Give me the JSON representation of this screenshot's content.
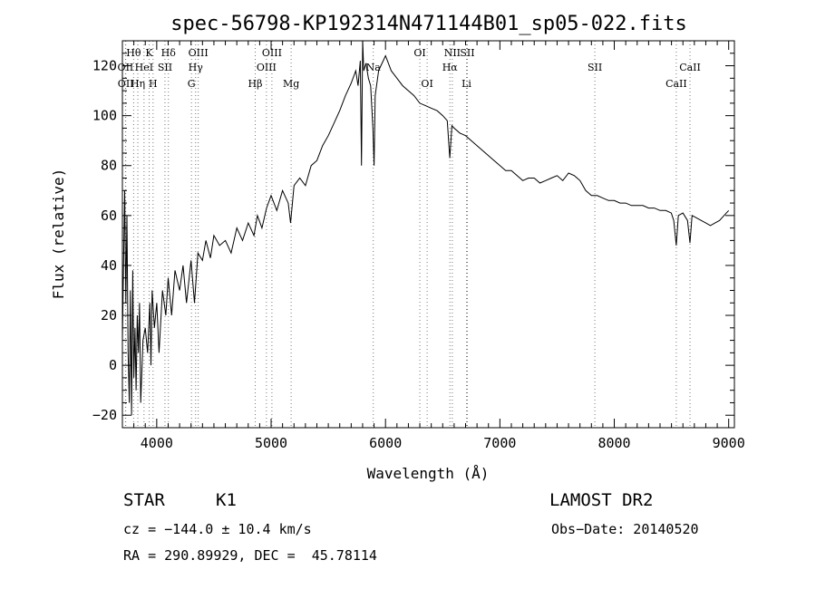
{
  "chart_data": {
    "type": "line",
    "title": "spec-56798-KP192314N471144B01_sp05-022.fits",
    "xlabel": "Wavelength (Å)",
    "ylabel": "Flux (relative)",
    "xlim": [
      3700,
      9050
    ],
    "ylim": [
      -25,
      130
    ],
    "xticks": [
      4000,
      5000,
      6000,
      7000,
      8000,
      9000
    ],
    "yticks": [
      -20,
      0,
      20,
      40,
      60,
      80,
      100,
      120
    ],
    "grid": false,
    "series": [
      {
        "values": [
          [
            3700,
            10
          ],
          [
            3720,
            70
          ],
          [
            3730,
            25
          ],
          [
            3740,
            60
          ],
          [
            3750,
            5
          ],
          [
            3760,
            -15
          ],
          [
            3770,
            30
          ],
          [
            3780,
            -20
          ],
          [
            3790,
            38
          ],
          [
            3800,
            -5
          ],
          [
            3810,
            15
          ],
          [
            3820,
            -10
          ],
          [
            3830,
            20
          ],
          [
            3840,
            5
          ],
          [
            3850,
            25
          ],
          [
            3860,
            -15
          ],
          [
            3880,
            10
          ],
          [
            3900,
            15
          ],
          [
            3920,
            5
          ],
          [
            3940,
            25
          ],
          [
            3950,
            0
          ],
          [
            3960,
            30
          ],
          [
            3980,
            15
          ],
          [
            4000,
            25
          ],
          [
            4020,
            5
          ],
          [
            4050,
            30
          ],
          [
            4080,
            20
          ],
          [
            4100,
            35
          ],
          [
            4130,
            20
          ],
          [
            4160,
            38
          ],
          [
            4200,
            30
          ],
          [
            4230,
            40
          ],
          [
            4260,
            25
          ],
          [
            4300,
            42
          ],
          [
            4330,
            25
          ],
          [
            4360,
            45
          ],
          [
            4400,
            42
          ],
          [
            4430,
            50
          ],
          [
            4470,
            43
          ],
          [
            4500,
            52
          ],
          [
            4550,
            48
          ],
          [
            4600,
            50
          ],
          [
            4650,
            45
          ],
          [
            4700,
            55
          ],
          [
            4750,
            50
          ],
          [
            4800,
            57
          ],
          [
            4850,
            52
          ],
          [
            4880,
            60
          ],
          [
            4920,
            55
          ],
          [
            4960,
            63
          ],
          [
            5000,
            68
          ],
          [
            5050,
            62
          ],
          [
            5100,
            70
          ],
          [
            5150,
            65
          ],
          [
            5170,
            57
          ],
          [
            5200,
            72
          ],
          [
            5250,
            75
          ],
          [
            5300,
            72
          ],
          [
            5350,
            80
          ],
          [
            5400,
            82
          ],
          [
            5450,
            88
          ],
          [
            5500,
            92
          ],
          [
            5550,
            97
          ],
          [
            5600,
            102
          ],
          [
            5650,
            108
          ],
          [
            5700,
            113
          ],
          [
            5740,
            118
          ],
          [
            5760,
            112
          ],
          [
            5780,
            122
          ],
          [
            5790,
            80
          ],
          [
            5800,
            130
          ],
          [
            5810,
            118
          ],
          [
            5830,
            121
          ],
          [
            5850,
            115
          ],
          [
            5870,
            112
          ],
          [
            5890,
            95
          ],
          [
            5900,
            80
          ],
          [
            5910,
            108
          ],
          [
            5940,
            118
          ],
          [
            5960,
            120
          ],
          [
            5980,
            122
          ],
          [
            6000,
            124
          ],
          [
            6050,
            118
          ],
          [
            6100,
            115
          ],
          [
            6150,
            112
          ],
          [
            6200,
            110
          ],
          [
            6250,
            108
          ],
          [
            6300,
            105
          ],
          [
            6350,
            104
          ],
          [
            6400,
            103
          ],
          [
            6450,
            102
          ],
          [
            6500,
            100
          ],
          [
            6540,
            98
          ],
          [
            6562,
            83
          ],
          [
            6580,
            96
          ],
          [
            6600,
            95
          ],
          [
            6650,
            93
          ],
          [
            6700,
            92
          ],
          [
            6750,
            90
          ],
          [
            6800,
            88
          ],
          [
            6850,
            86
          ],
          [
            6900,
            84
          ],
          [
            6950,
            82
          ],
          [
            7000,
            80
          ],
          [
            7050,
            78
          ],
          [
            7100,
            78
          ],
          [
            7150,
            76
          ],
          [
            7200,
            74
          ],
          [
            7250,
            75
          ],
          [
            7300,
            75
          ],
          [
            7350,
            73
          ],
          [
            7400,
            74
          ],
          [
            7450,
            75
          ],
          [
            7500,
            76
          ],
          [
            7550,
            74
          ],
          [
            7600,
            77
          ],
          [
            7650,
            76
          ],
          [
            7700,
            74
          ],
          [
            7750,
            70
          ],
          [
            7800,
            68
          ],
          [
            7850,
            68
          ],
          [
            7900,
            67
          ],
          [
            7950,
            66
          ],
          [
            8000,
            66
          ],
          [
            8050,
            65
          ],
          [
            8100,
            65
          ],
          [
            8150,
            64
          ],
          [
            8200,
            64
          ],
          [
            8250,
            64
          ],
          [
            8300,
            63
          ],
          [
            8350,
            63
          ],
          [
            8400,
            62
          ],
          [
            8450,
            62
          ],
          [
            8498,
            61
          ],
          [
            8520,
            58
          ],
          [
            8542,
            48
          ],
          [
            8560,
            60
          ],
          [
            8600,
            61
          ],
          [
            8640,
            58
          ],
          [
            8662,
            49
          ],
          [
            8680,
            60
          ],
          [
            8720,
            59
          ],
          [
            8760,
            58
          ],
          [
            8800,
            57
          ],
          [
            8840,
            56
          ],
          [
            8880,
            57
          ],
          [
            8920,
            58
          ],
          [
            8960,
            60
          ],
          [
            9000,
            62
          ]
        ]
      }
    ],
    "lines": [
      {
        "label": "Hθ",
        "wavelength": 3798,
        "row": 1
      },
      {
        "label": "OII",
        "wavelength": 3727,
        "row": 2
      },
      {
        "label": "OII",
        "wavelength": 3729,
        "row": 3
      },
      {
        "label": "Hη",
        "wavelength": 3835,
        "row": 3
      },
      {
        "label": "HeI",
        "wavelength": 3889,
        "row": 2
      },
      {
        "label": "K",
        "wavelength": 3934,
        "row": 1
      },
      {
        "label": "H",
        "wavelength": 3968,
        "row": 3
      },
      {
        "label": "SII",
        "wavelength": 4072,
        "row": 2
      },
      {
        "label": "Hδ",
        "wavelength": 4102,
        "row": 1
      },
      {
        "label": "OIII",
        "wavelength": 4363,
        "row": 1
      },
      {
        "label": "Hγ",
        "wavelength": 4340,
        "row": 2
      },
      {
        "label": "G",
        "wavelength": 4304,
        "row": 3
      },
      {
        "label": "Hβ",
        "wavelength": 4861,
        "row": 3
      },
      {
        "label": "OIII",
        "wavelength": 4959,
        "row": 2
      },
      {
        "label": "OIII",
        "wavelength": 5007,
        "row": 1
      },
      {
        "label": "Mg",
        "wavelength": 5175,
        "row": 3
      },
      {
        "label": "Na",
        "wavelength": 5893,
        "row": 2
      },
      {
        "label": "OI",
        "wavelength": 6300,
        "row": 1
      },
      {
        "label": "OI",
        "wavelength": 6364,
        "row": 3
      },
      {
        "label": "Hα",
        "wavelength": 6563,
        "row": 2
      },
      {
        "label": "NII",
        "wavelength": 6584,
        "row": 1
      },
      {
        "label": "Li",
        "wavelength": 6708,
        "row": 3
      },
      {
        "label": "SII",
        "wavelength": 6716,
        "row": 1
      },
      {
        "label": "SII",
        "wavelength": 7830,
        "row": 2
      },
      {
        "label": "CaII",
        "wavelength": 8542,
        "row": 3
      },
      {
        "label": "CaII",
        "wavelength": 8662,
        "row": 2
      }
    ]
  },
  "footer": {
    "object_type": "STAR",
    "subclass": "K1",
    "cz": "cz = −144.0 ± 10.4 km/s",
    "coords": "RA = 290.89929, DEC =  45.78114",
    "survey": "LAMOST DR2",
    "obs_date": "Obs−Date: 20140520"
  }
}
